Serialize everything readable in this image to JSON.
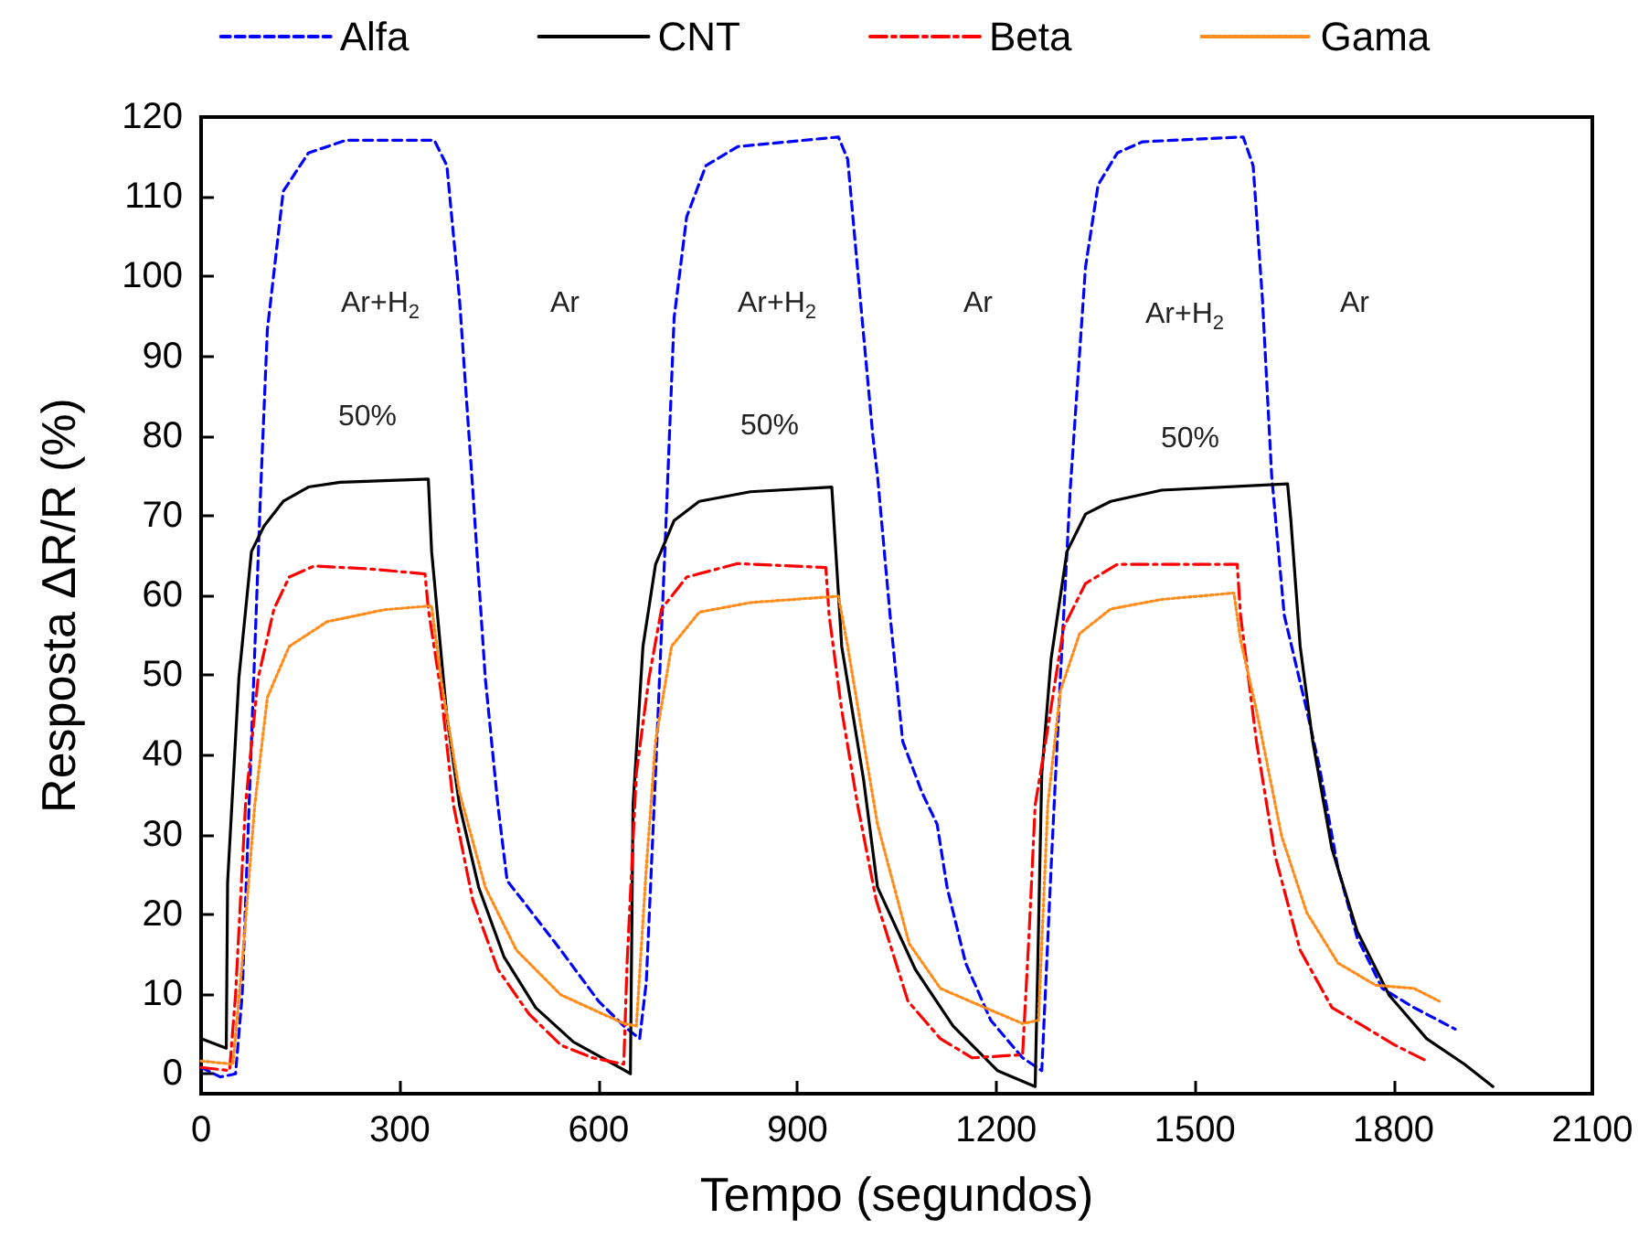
{
  "chart_data": {
    "type": "line",
    "xlabel": "Tempo (segundos)",
    "ylabel": "Resposta ΔR/R (%)",
    "xlim": [
      0,
      2100
    ],
    "xticks": [
      0,
      300,
      600,
      900,
      1200,
      1500,
      1800,
      2100
    ],
    "ylim": [
      -2.5,
      120
    ],
    "yticks": [
      0,
      10,
      20,
      30,
      40,
      50,
      60,
      70,
      80,
      90,
      100,
      110,
      120
    ],
    "grid": false,
    "legend": "top",
    "annotations": [
      "Ar+H$_{2}$",
      "Ar",
      "50%",
      "Ar+H$_{2}$",
      "Ar",
      "50%",
      "Ar+H$_{2}$",
      "Ar",
      "50%"
    ],
    "series": [
      {
        "name": "Alfa",
        "color": "#0000ff",
        "line_style": "dashed",
        "x": [
          0,
          29,
          52,
          62,
          76,
          90,
          100,
          124,
          162,
          219,
          352,
          371,
          390,
          410,
          429,
          448,
          462,
          481,
          543,
          600,
          638,
          662,
          672,
          686,
          700,
          714,
          733,
          762,
          810,
          962,
          976,
          995,
          1014,
          1021,
          1040,
          1059,
          1088,
          1111,
          1126,
          1154,
          1192,
          1240,
          1269,
          1283,
          1297,
          1312,
          1335,
          1354,
          1383,
          1421,
          1573,
          1588,
          1602,
          1616,
          1635,
          1669,
          1688,
          1716,
          1745,
          1783,
          1831,
          1893
        ],
        "values": [
          0.8,
          -0.4,
          0,
          9.9,
          41.7,
          73.4,
          93.3,
          110.7,
          115.5,
          117.1,
          117.1,
          113.9,
          97.2,
          73.4,
          49.6,
          33.7,
          24.2,
          22.2,
          15.5,
          9.1,
          6.0,
          4.4,
          11.5,
          37.7,
          65.5,
          94.8,
          107.5,
          113.9,
          116.3,
          117.5,
          114.7,
          97.2,
          80,
          75,
          57.5,
          41.7,
          35.3,
          31.3,
          23.4,
          13.9,
          6.7,
          2.0,
          0.4,
          25.8,
          49.6,
          73.4,
          101.2,
          111.5,
          115.5,
          116.9,
          117.5,
          113.9,
          97.2,
          75,
          57.5,
          45.6,
          38.5,
          25.8,
          17.1,
          10.7,
          8.3,
          5.6
        ]
      },
      {
        "name": "CNT",
        "color": "#000000",
        "line_style": "solid",
        "x": [
          0,
          38,
          40,
          57,
          76,
          95,
          124,
          162,
          210,
          343,
          348,
          371,
          390,
          419,
          457,
          505,
          562,
          638,
          648,
          652,
          667,
          686,
          714,
          752,
          829,
          952,
          967,
          1000,
          1021,
          1078,
          1135,
          1202,
          1259,
          1269,
          1283,
          1307,
          1335,
          1373,
          1450,
          1640,
          1645,
          1659,
          1678,
          1707,
          1745,
          1793,
          1850,
          1907,
          1950
        ],
        "values": [
          4.4,
          3.2,
          24,
          49.6,
          65.5,
          68.7,
          71.8,
          73.6,
          74.2,
          74.6,
          65.5,
          44.8,
          33.7,
          23.4,
          14.7,
          8.3,
          4.0,
          0.5,
          0,
          33.7,
          53.6,
          63.9,
          69.4,
          71.8,
          73.0,
          73.6,
          53.6,
          36.9,
          23.4,
          13.1,
          6.0,
          0.4,
          -1.6,
          37.7,
          52,
          65.5,
          70.2,
          71.8,
          73.2,
          74.0,
          69.4,
          53.6,
          41.7,
          28.2,
          17.9,
          9.9,
          4.4,
          1.2,
          -1.6
        ]
      },
      {
        "name": "Beta",
        "color": "#ff0000",
        "line_style": "dashdot",
        "x": [
          0,
          43,
          52,
          67,
          86,
          110,
          133,
          171,
          257,
          338,
          343,
          362,
          381,
          410,
          448,
          495,
          543,
          591,
          638,
          643,
          657,
          676,
          695,
          733,
          810,
          943,
          948,
          967,
          991,
          1019,
          1067,
          1116,
          1164,
          1240,
          1250,
          1259,
          1278,
          1302,
          1335,
          1383,
          1564,
          1569,
          1593,
          1621,
          1659,
          1707,
          1754,
          1802,
          1850
        ],
        "values": [
          0.8,
          0.4,
          9.9,
          33.7,
          49.6,
          58.3,
          62.3,
          63.7,
          63.3,
          62.7,
          58.3,
          48,
          33.7,
          21.8,
          13.1,
          7.5,
          3.6,
          2.0,
          1.2,
          13.9,
          37.7,
          49.6,
          58.3,
          62.3,
          64,
          63.5,
          57.5,
          45.6,
          33.7,
          21.8,
          9.1,
          4.4,
          2.0,
          2.4,
          17.9,
          33.7,
          43.3,
          56,
          61.5,
          63.9,
          63.9,
          57.5,
          41.7,
          27.4,
          15.5,
          8.3,
          6.0,
          3.6,
          1.6
        ]
      },
      {
        "name": "Gama",
        "color": "#ff8c1a",
        "line_style": "dotted",
        "x": [
          0,
          48,
          62,
          81,
          100,
          133,
          190,
          276,
          348,
          362,
          390,
          429,
          476,
          543,
          638,
          657,
          672,
          686,
          710,
          752,
          829,
          962,
          976,
          1000,
          1021,
          1069,
          1116,
          1183,
          1240,
          1264,
          1278,
          1297,
          1326,
          1373,
          1450,
          1559,
          1569,
          1593,
          1631,
          1669,
          1716,
          1773,
          1831,
          1869
        ],
        "values": [
          1.6,
          1.2,
          13.9,
          33.7,
          47.2,
          53.6,
          56.7,
          58.2,
          58.7,
          49.6,
          35.3,
          23.4,
          15.5,
          9.9,
          6.3,
          6.0,
          25.8,
          41.7,
          53.6,
          57.9,
          59.1,
          59.9,
          53.6,
          41.7,
          31.3,
          16.3,
          10.7,
          8.3,
          6.3,
          6.7,
          33.7,
          48,
          55.2,
          58.3,
          59.5,
          60.3,
          54.4,
          45.6,
          29.8,
          20.2,
          13.9,
          11.1,
          10.7,
          9.1
        ]
      }
    ]
  }
}
